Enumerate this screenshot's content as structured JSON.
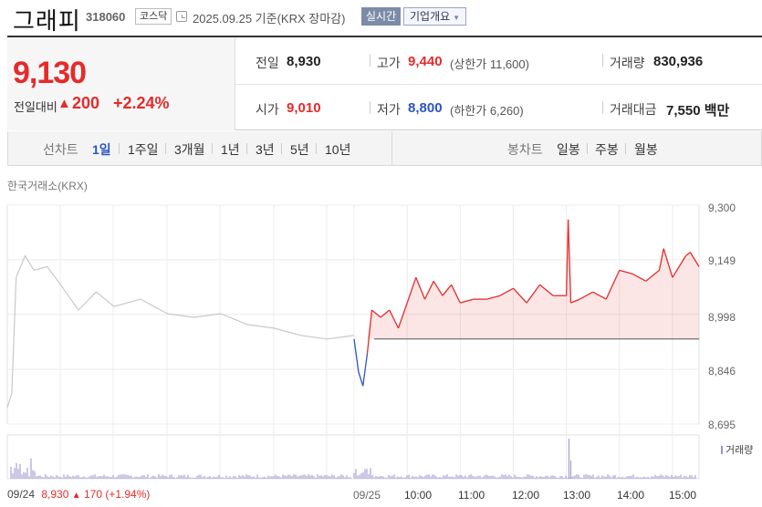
{
  "header": {
    "name": "그래피",
    "code": "318060",
    "market": "코스닥",
    "date": "2025.09.25 기준(KRX 장마감)",
    "live_label": "실시간",
    "corp_label": "기업개요"
  },
  "summary": {
    "price": "9,130",
    "diff_label": "전일대비",
    "diff_arrow": "▲",
    "diff_value": "200",
    "diff_pct": "+2.24%",
    "prev_label": "전일",
    "prev_value": "8,930",
    "high_label": "고가",
    "high_value": "9,440",
    "upper_limit": "(상한가 11,600)",
    "volume_label": "거래량",
    "volume_value": "830,936",
    "open_label": "시가",
    "open_value": "9,010",
    "low_label": "저가",
    "low_value": "8,800",
    "lower_limit": "(하한가 6,260)",
    "amount_label": "거래대금",
    "amount_value": "7,550 백만"
  },
  "period_tabs": {
    "label": "선차트",
    "items": [
      "1일",
      "1주일",
      "3개월",
      "1년",
      "3년",
      "5년",
      "10년"
    ],
    "active": "1일",
    "candle_label": "봉차트",
    "candle_items": [
      "일봉",
      "주봉",
      "월봉"
    ]
  },
  "source_label": "한국거래소(KRX)",
  "prev_close_note": {
    "date": "09/24",
    "price": "8,930",
    "arrow": "▲",
    "change": "170 (+1.94%)"
  },
  "colors": {
    "up": "#e52b2b",
    "down": "#2b55c4",
    "prev_day_line": "#c8c8c8",
    "volume": "#9b8fd0"
  },
  "chart_data": {
    "type": "line",
    "ylim": [
      8695,
      9300
    ],
    "y_ticks": [
      "9,300",
      "9,149",
      "8,998",
      "8,846",
      "8,695"
    ],
    "x_ticks": [
      "09/25",
      "10:00",
      "11:00",
      "12:00",
      "13:00",
      "14:00",
      "15:00"
    ],
    "reference_price": 8930,
    "volume_legend": "거래량",
    "series": [
      {
        "x": [
          "09/24 09:00",
          "09/24 09:05",
          "09/24 09:10",
          "09/24 09:20",
          "09/24 09:30",
          "09/24 09:45",
          "09/24 10:00",
          "09/24 10:20",
          "09/24 10:40",
          "09/24 11:00",
          "09/24 11:30",
          "09/24 12:00",
          "09/24 12:30",
          "09/24 13:00",
          "09/24 13:30",
          "09/24 14:00",
          "09/24 14:30",
          "09/24 15:00",
          "09/24 15:30"
        ],
        "values": [
          8740,
          8780,
          9100,
          9160,
          9120,
          9130,
          9080,
          9010,
          9060,
          9020,
          9040,
          9000,
          8990,
          9000,
          8970,
          8960,
          8940,
          8930,
          8940
        ]
      },
      {
        "x": [
          "09:00",
          "09:05",
          "09:10",
          "09:15",
          "09:20",
          "09:30",
          "09:40",
          "09:50",
          "10:00",
          "10:10",
          "10:20",
          "10:30",
          "10:40",
          "10:50",
          "11:00",
          "11:15",
          "11:30",
          "11:45",
          "12:00",
          "12:15",
          "12:30",
          "12:45",
          "13:00",
          "13:02",
          "13:05",
          "13:15",
          "13:30",
          "13:45",
          "14:00",
          "14:15",
          "14:30",
          "14:45",
          "14:50",
          "15:00",
          "15:15",
          "15:20",
          "15:30"
        ],
        "values": [
          8930,
          8840,
          8800,
          8890,
          9010,
          8990,
          9010,
          8960,
          9030,
          9100,
          9040,
          9090,
          9050,
          9080,
          9030,
          9040,
          9040,
          9050,
          9070,
          9030,
          9080,
          9050,
          9050,
          9260,
          9030,
          9040,
          9060,
          9040,
          9120,
          9110,
          9090,
          9120,
          9180,
          9100,
          9160,
          9170,
          9130
        ]
      }
    ],
    "volume_peaks": [
      "09:00",
      "13:03"
    ]
  }
}
